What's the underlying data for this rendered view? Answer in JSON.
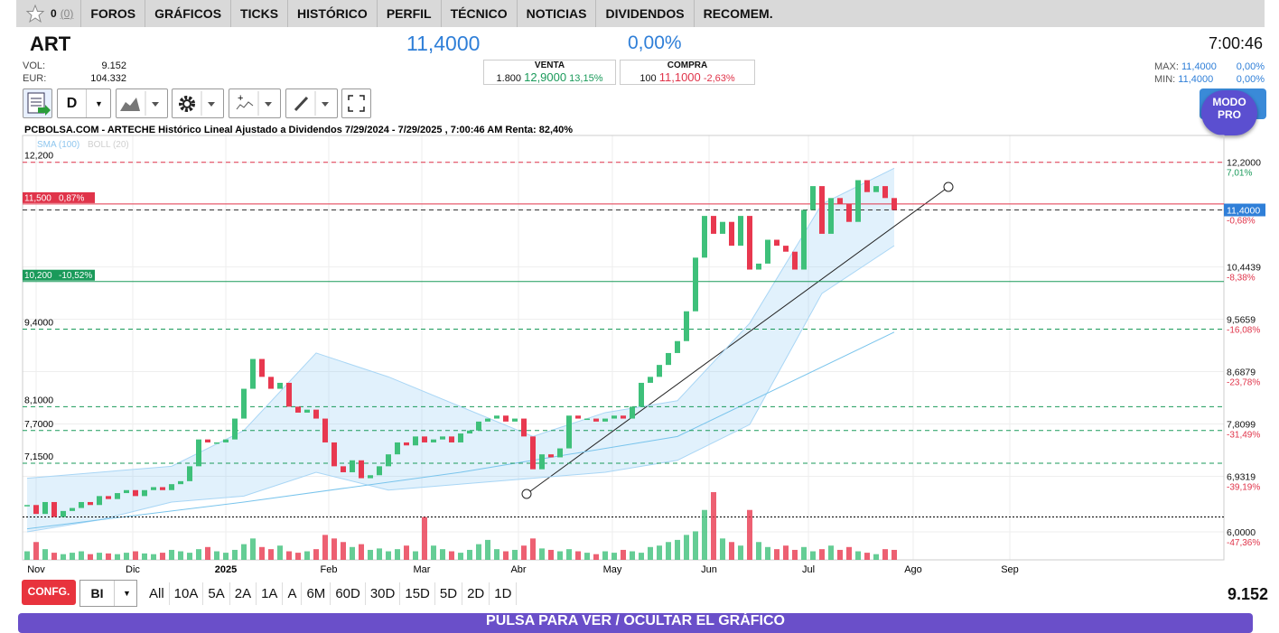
{
  "nav": {
    "count": "0",
    "count_paren": "(0)",
    "items": [
      "FOROS",
      "GRÁFICOS",
      "TICKS",
      "HISTÓRICO",
      "PERFIL",
      "TÉCNICO",
      "NOTICIAS",
      "DIVIDENDOS",
      "RECOMEM."
    ]
  },
  "quote": {
    "symbol": "ART",
    "price": "11,4000",
    "change": "0,00%",
    "time": "7:00:46",
    "vol_label": "VOL:",
    "vol": "9.152",
    "eur_label": "EUR:",
    "eur": "104.332",
    "venta": {
      "label": "VENTA",
      "qty": "1.800",
      "price": "12,9000",
      "pct": "13,15%"
    },
    "compra": {
      "label": "COMPRA",
      "qty": "100",
      "price": "11,1000",
      "pct": "-2,63%"
    },
    "max_label": "MAX:",
    "max": "11,4000",
    "max_pct": "0,00%",
    "min_label": "MIN:",
    "min": "11,4000",
    "min_pct": "0,00%"
  },
  "toolbar": {
    "period": "D",
    "modo": "MODO PRO"
  },
  "chart_data": {
    "type": "candlestick",
    "title": "PCBOLSA.COM - ARTECHE Histórico Lineal Ajustado a Dividendos 7/29/2024 - 7/29/2025 , 7:00:46 AM Renta: 82,40%",
    "indicators": [
      "SMA (100)",
      "BOLL (20)"
    ],
    "closes": [
      6.45,
      6.3,
      6.5,
      6.25,
      6.35,
      6.4,
      6.5,
      6.45,
      6.6,
      6.55,
      6.65,
      6.7,
      6.6,
      6.7,
      6.75,
      6.7,
      6.8,
      6.85,
      7.1,
      7.55,
      7.5,
      7.5,
      7.55,
      7.9,
      8.4,
      8.9,
      8.6,
      8.4,
      8.5,
      8.1,
      8.0,
      8.05,
      7.9,
      7.5,
      7.1,
      7.0,
      7.2,
      6.9,
      6.95,
      7.1,
      7.3,
      7.5,
      7.45,
      7.6,
      7.5,
      7.55,
      7.6,
      7.5,
      7.65,
      7.7,
      7.85,
      7.9,
      7.95,
      7.85,
      7.9,
      7.6,
      7.05,
      7.3,
      7.25,
      7.4,
      7.95,
      7.9,
      7.9,
      7.85,
      7.9,
      7.95,
      7.9,
      8.1,
      8.5,
      8.6,
      8.8,
      9.0,
      9.2,
      9.7,
      10.6,
      11.3,
      11.0,
      11.2,
      10.8,
      11.3,
      10.4,
      10.5,
      10.9,
      10.8,
      10.7,
      10.4,
      11.4,
      11.8,
      11.0,
      11.6,
      11.5,
      11.2,
      11.9,
      11.7,
      11.8,
      11.6,
      11.4
    ],
    "volumes": [
      12,
      25,
      15,
      10,
      8,
      10,
      12,
      8,
      10,
      9,
      8,
      10,
      12,
      9,
      8,
      10,
      14,
      12,
      10,
      15,
      18,
      12,
      10,
      14,
      22,
      30,
      18,
      15,
      20,
      12,
      10,
      12,
      15,
      35,
      30,
      25,
      18,
      22,
      14,
      16,
      12,
      15,
      20,
      12,
      60,
      20,
      15,
      12,
      10,
      14,
      22,
      28,
      15,
      12,
      14,
      20,
      30,
      16,
      14,
      12,
      15,
      12,
      10,
      8,
      12,
      10,
      14,
      12,
      10,
      18,
      20,
      25,
      28,
      35,
      40,
      70,
      95,
      30,
      25,
      20,
      70,
      25,
      18,
      15,
      20,
      14,
      18,
      12,
      15,
      20,
      14,
      18,
      12,
      10,
      8,
      15,
      14
    ],
    "sma": {
      "x": [
        0,
        24,
        48,
        72,
        96
      ],
      "values": [
        6.05,
        6.5,
        7.0,
        7.6,
        9.35
      ]
    },
    "boll_upper": {
      "x": [
        0,
        8,
        16,
        24,
        32,
        40,
        48,
        56,
        64,
        72,
        80,
        88,
        96
      ],
      "values": [
        6.9,
        7.0,
        7.1,
        7.7,
        9.0,
        8.6,
        8.1,
        7.6,
        8.0,
        8.2,
        9.5,
        11.5,
        12.1
      ]
    },
    "boll_lower": {
      "x": [
        0,
        8,
        16,
        24,
        32,
        40,
        48,
        56,
        64,
        72,
        80,
        88,
        96
      ],
      "values": [
        6.0,
        6.2,
        6.5,
        6.6,
        7.0,
        6.7,
        6.8,
        6.9,
        7.0,
        7.2,
        7.8,
        10.0,
        10.8
      ]
    },
    "xlim": [
      -0.5,
      132.5
    ],
    "ylim": [
      5.53,
      12.65
    ],
    "xticks": [
      {
        "value": 1,
        "label": "Nov"
      },
      {
        "value": 11.7,
        "label": "Dic"
      },
      {
        "value": 22,
        "label": "2025"
      },
      {
        "value": 33.4,
        "label": "Feb"
      },
      {
        "value": 43.7,
        "label": "Mar"
      },
      {
        "value": 54.4,
        "label": "Abr"
      },
      {
        "value": 64.8,
        "label": "May"
      },
      {
        "value": 75.5,
        "label": "Jun"
      },
      {
        "value": 86.5,
        "label": "Jul"
      },
      {
        "value": 98.1,
        "label": "Ago"
      },
      {
        "value": 108.8,
        "label": "Sep"
      }
    ],
    "yticks": [
      {
        "value": 12.2,
        "label": "12,2000"
      },
      {
        "value": 11.4,
        "label": "11,4000"
      },
      {
        "value": 10.4439,
        "label": "10,4439"
      },
      {
        "value": 9.5659,
        "label": "9,5659"
      },
      {
        "value": 8.6879,
        "label": "8,6879"
      },
      {
        "value": 7.8099,
        "label": "7,8099"
      },
      {
        "value": 6.9319,
        "label": "6,9319"
      },
      {
        "value": 6.0,
        "label": "6,0000"
      }
    ],
    "ytick_pct": [
      "7,01%",
      "-0,68%",
      "-8,38%",
      "-16,08%",
      "-23,78%",
      "-31,49%",
      "-39,19%",
      "-47,36%"
    ],
    "current": 11.4,
    "levels": [
      {
        "value": 12.2,
        "label": "12,200",
        "color": "#e0344a",
        "style": "dashed"
      },
      {
        "value": 11.5,
        "label": "11,500",
        "pct": "0,87%",
        "color": "#e0344a",
        "style": "box"
      },
      {
        "value": 11.4,
        "color": "#333333",
        "style": "dashed"
      },
      {
        "value": 10.2,
        "label": "10,200",
        "pct": "-10,52%",
        "color": "#1a9a5a",
        "style": "box"
      },
      {
        "value": 9.4,
        "label": "9,4000",
        "color": "#1a9a5a",
        "style": "dashed"
      },
      {
        "value": 8.1,
        "label": "8,1000",
        "color": "#1a9a5a",
        "style": "dashed"
      },
      {
        "value": 7.7,
        "label": "7,7000",
        "color": "#1a9a5a",
        "style": "dashed"
      },
      {
        "value": 7.15,
        "label": "7,1500",
        "color": "#1a9a5a",
        "style": "dashed"
      },
      {
        "value": 6.25,
        "color": "#000000",
        "style": "dotted"
      }
    ],
    "up_color": "#3ec07a",
    "down_color": "#e8384f",
    "grid": true
  },
  "bottom": {
    "config": "CONFG.",
    "select": "BI",
    "periods": [
      "All",
      "10A",
      "5A",
      "2A",
      "1A",
      "A",
      "6M",
      "60D",
      "30D",
      "15D",
      "5D",
      "2D",
      "1D"
    ],
    "volume": "9.152",
    "toggle": "PULSA PARA VER / OCULTAR EL GRÁFICO"
  }
}
